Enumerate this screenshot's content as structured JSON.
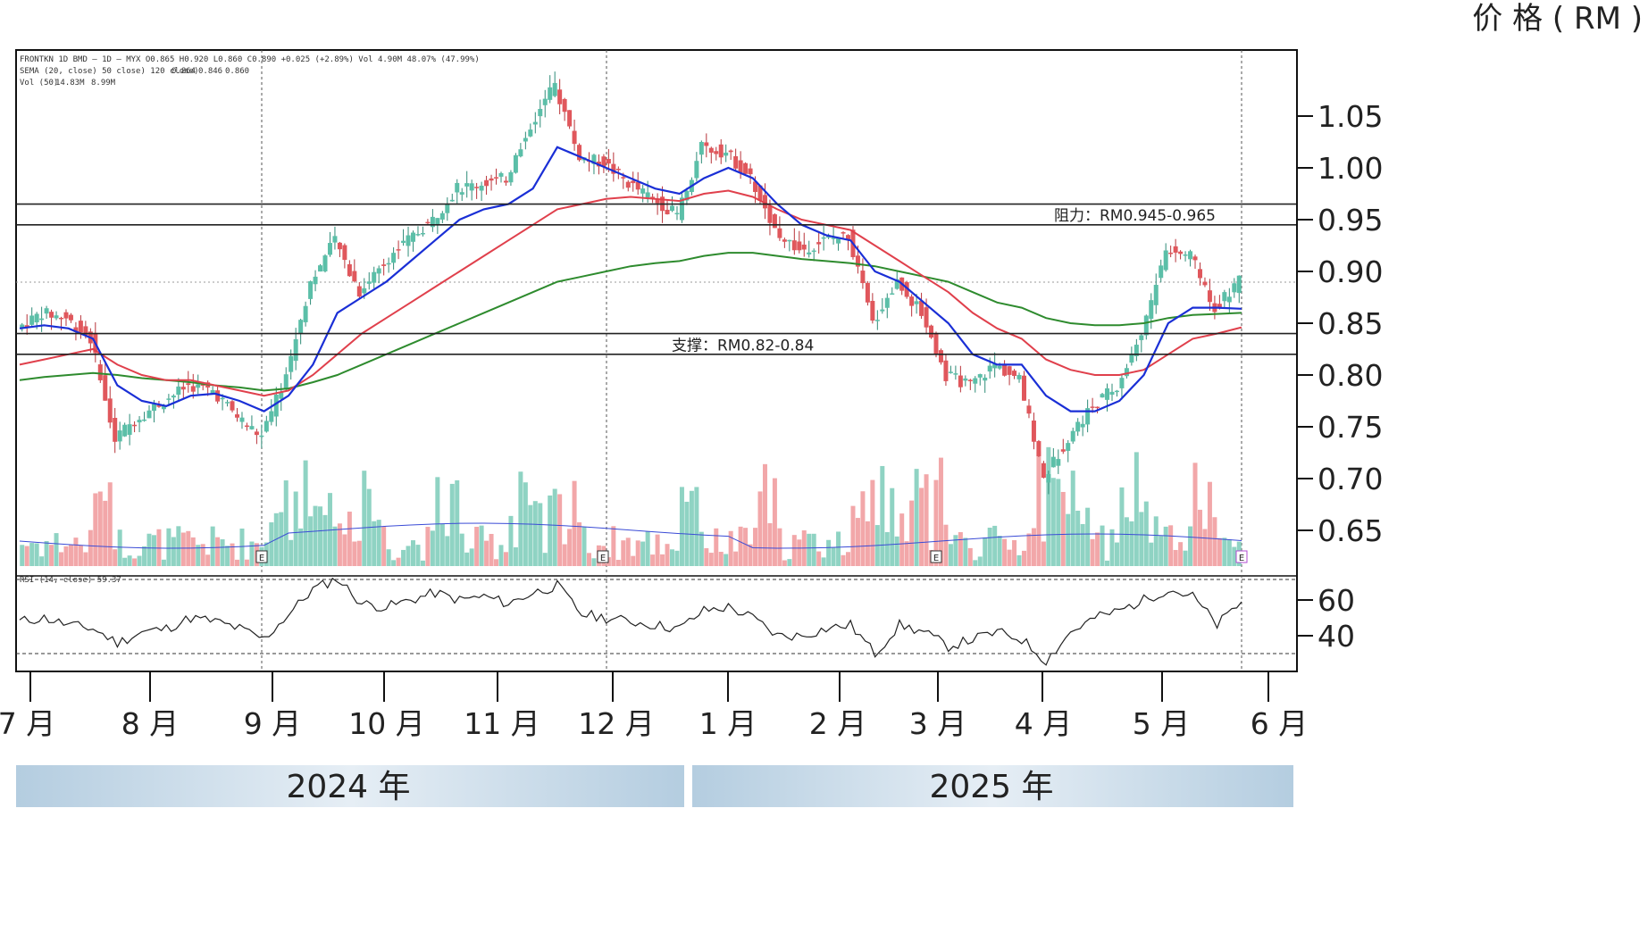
{
  "chart_data": {
    "type": "candlestick",
    "price_unit_label": "价 格 ( RM )",
    "ylim": [
      0.625,
      1.11
    ],
    "y_ticks": [
      "1.05",
      "1.00",
      "0.95",
      "0.90",
      "0.85",
      "0.80",
      "0.75",
      "0.70",
      "0.65"
    ],
    "months": [
      "7 月",
      "8 月",
      "9 月",
      "10 月",
      "11 月",
      "12 月",
      "1 月",
      "2 月",
      "3 月",
      "4 月",
      "5 月",
      "6 月"
    ],
    "years": [
      "2024 年",
      "2025 年"
    ],
    "header_lines": [
      "FRONTKN 1D BMD — 1D — MYX  O0.865 H0.920 L0.860 C0.890 +0.025 (+2.89%)  Vol 4.90M  48.07% (47.99%)",
      "SEMA (20, close) 50 close) 120 close)",
      "Vol (50)"
    ],
    "ema_values": [
      "0.864",
      "0.846",
      "0.860"
    ],
    "vol_values": [
      "14.83M",
      "8.99M"
    ],
    "rsi_header": "RSI (14, close) 59.37",
    "resistance": {
      "label": "阻力：RM0.945-0.965",
      "low": 0.945,
      "high": 0.965
    },
    "support": {
      "label": "支撑：RM0.82-0.84",
      "low": 0.82,
      "high": 0.84
    },
    "rsi_ticks": [
      "60",
      "40"
    ],
    "rsi_levels": [
      70,
      30
    ],
    "earnings_marker": "E",
    "colors": {
      "up": "#5bbfa8",
      "down": "#e0575c",
      "ema20": "#1a2fd6",
      "ema50": "#e0404c",
      "ema120": "#2e8b2e",
      "volume_up": "#8fd3c3",
      "volume_down": "#f2a7a9",
      "rsi": "#222222",
      "year_bar": "#bcd3e4"
    },
    "closes_weekly": [
      0.845,
      0.86,
      0.855,
      0.835,
      0.74,
      0.76,
      0.775,
      0.79,
      0.785,
      0.76,
      0.74,
      0.8,
      0.89,
      0.93,
      0.88,
      0.91,
      0.93,
      0.95,
      0.98,
      0.985,
      0.99,
      1.04,
      1.08,
      1.01,
      1.005,
      0.985,
      0.97,
      0.955,
      1.02,
      1.015,
      0.99,
      0.94,
      0.92,
      0.93,
      0.935,
      0.85,
      0.89,
      0.86,
      0.8,
      0.79,
      0.81,
      0.795,
      0.7,
      0.74,
      0.77,
      0.79,
      0.84,
      0.92,
      0.915,
      0.865,
      0.89
    ],
    "ema20_weekly": [
      0.845,
      0.848,
      0.845,
      0.835,
      0.79,
      0.775,
      0.77,
      0.78,
      0.782,
      0.775,
      0.765,
      0.78,
      0.81,
      0.86,
      0.875,
      0.89,
      0.91,
      0.93,
      0.95,
      0.96,
      0.965,
      0.98,
      1.02,
      1.01,
      1.0,
      0.99,
      0.98,
      0.975,
      0.99,
      1.0,
      0.99,
      0.965,
      0.945,
      0.935,
      0.93,
      0.9,
      0.89,
      0.87,
      0.85,
      0.82,
      0.81,
      0.81,
      0.78,
      0.765,
      0.765,
      0.775,
      0.8,
      0.85,
      0.865,
      0.865,
      0.864
    ],
    "ema50_weekly": [
      0.81,
      0.815,
      0.82,
      0.825,
      0.81,
      0.8,
      0.795,
      0.795,
      0.79,
      0.785,
      0.78,
      0.785,
      0.8,
      0.82,
      0.84,
      0.855,
      0.87,
      0.885,
      0.9,
      0.915,
      0.93,
      0.945,
      0.96,
      0.965,
      0.97,
      0.972,
      0.97,
      0.968,
      0.975,
      0.978,
      0.972,
      0.96,
      0.95,
      0.945,
      0.94,
      0.925,
      0.91,
      0.895,
      0.88,
      0.86,
      0.845,
      0.835,
      0.815,
      0.805,
      0.8,
      0.8,
      0.805,
      0.82,
      0.835,
      0.84,
      0.846
    ],
    "ema120_weekly": [
      0.795,
      0.798,
      0.8,
      0.802,
      0.8,
      0.797,
      0.795,
      0.793,
      0.79,
      0.788,
      0.785,
      0.787,
      0.793,
      0.8,
      0.81,
      0.82,
      0.83,
      0.84,
      0.85,
      0.86,
      0.87,
      0.88,
      0.89,
      0.895,
      0.9,
      0.905,
      0.908,
      0.91,
      0.915,
      0.918,
      0.918,
      0.915,
      0.912,
      0.91,
      0.908,
      0.905,
      0.9,
      0.895,
      0.89,
      0.88,
      0.87,
      0.865,
      0.855,
      0.85,
      0.848,
      0.848,
      0.85,
      0.855,
      0.858,
      0.859,
      0.86
    ],
    "rsi_weekly": [
      48,
      50,
      46,
      44,
      36,
      42,
      44,
      50,
      48,
      44,
      38,
      52,
      66,
      72,
      58,
      56,
      60,
      64,
      60,
      62,
      58,
      64,
      68,
      52,
      50,
      48,
      46,
      44,
      54,
      56,
      50,
      40,
      40,
      44,
      46,
      30,
      46,
      42,
      34,
      38,
      42,
      38,
      26,
      42,
      50,
      54,
      60,
      66,
      62,
      46,
      59
    ]
  }
}
